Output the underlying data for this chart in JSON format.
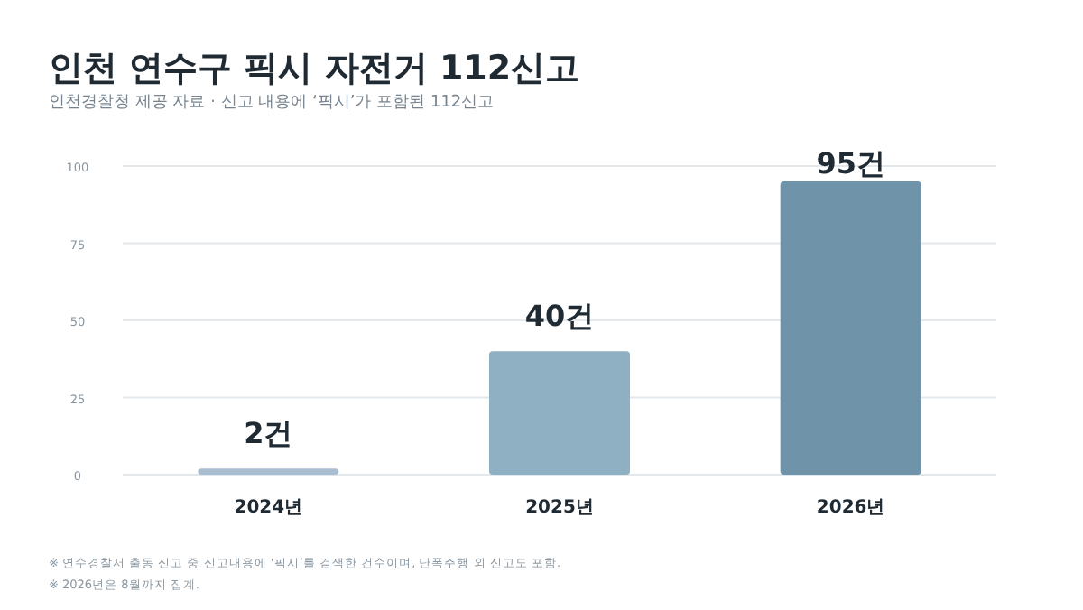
{
  "chart_data": {
    "type": "bar",
    "title": "인천 연수구 픽시 자전거 112신고",
    "subtitle": "인천경찰청 제공 자료 · 신고 내용에 ‘픽시’가 포함된 112신고",
    "categories": [
      "2024년",
      "2025년",
      "2026년"
    ],
    "values": [
      2,
      40,
      95
    ],
    "colors": [
      "#a9bdd0",
      "#8fafc2",
      "#6f93a9"
    ],
    "value_labels": [
      "2건",
      "40건",
      "95건"
    ],
    "ylim": [
      0,
      100
    ],
    "yticks": [
      0,
      25,
      50,
      75,
      100
    ],
    "grid": "y",
    "annotations": [
      "※ 연수경찰서 출동 신고 중 신고내용에 ‘픽시’를 검색한 건수이며, 난폭주행 외 신고도 포함.",
      "※ 2026년은 8월까지 집계."
    ]
  }
}
